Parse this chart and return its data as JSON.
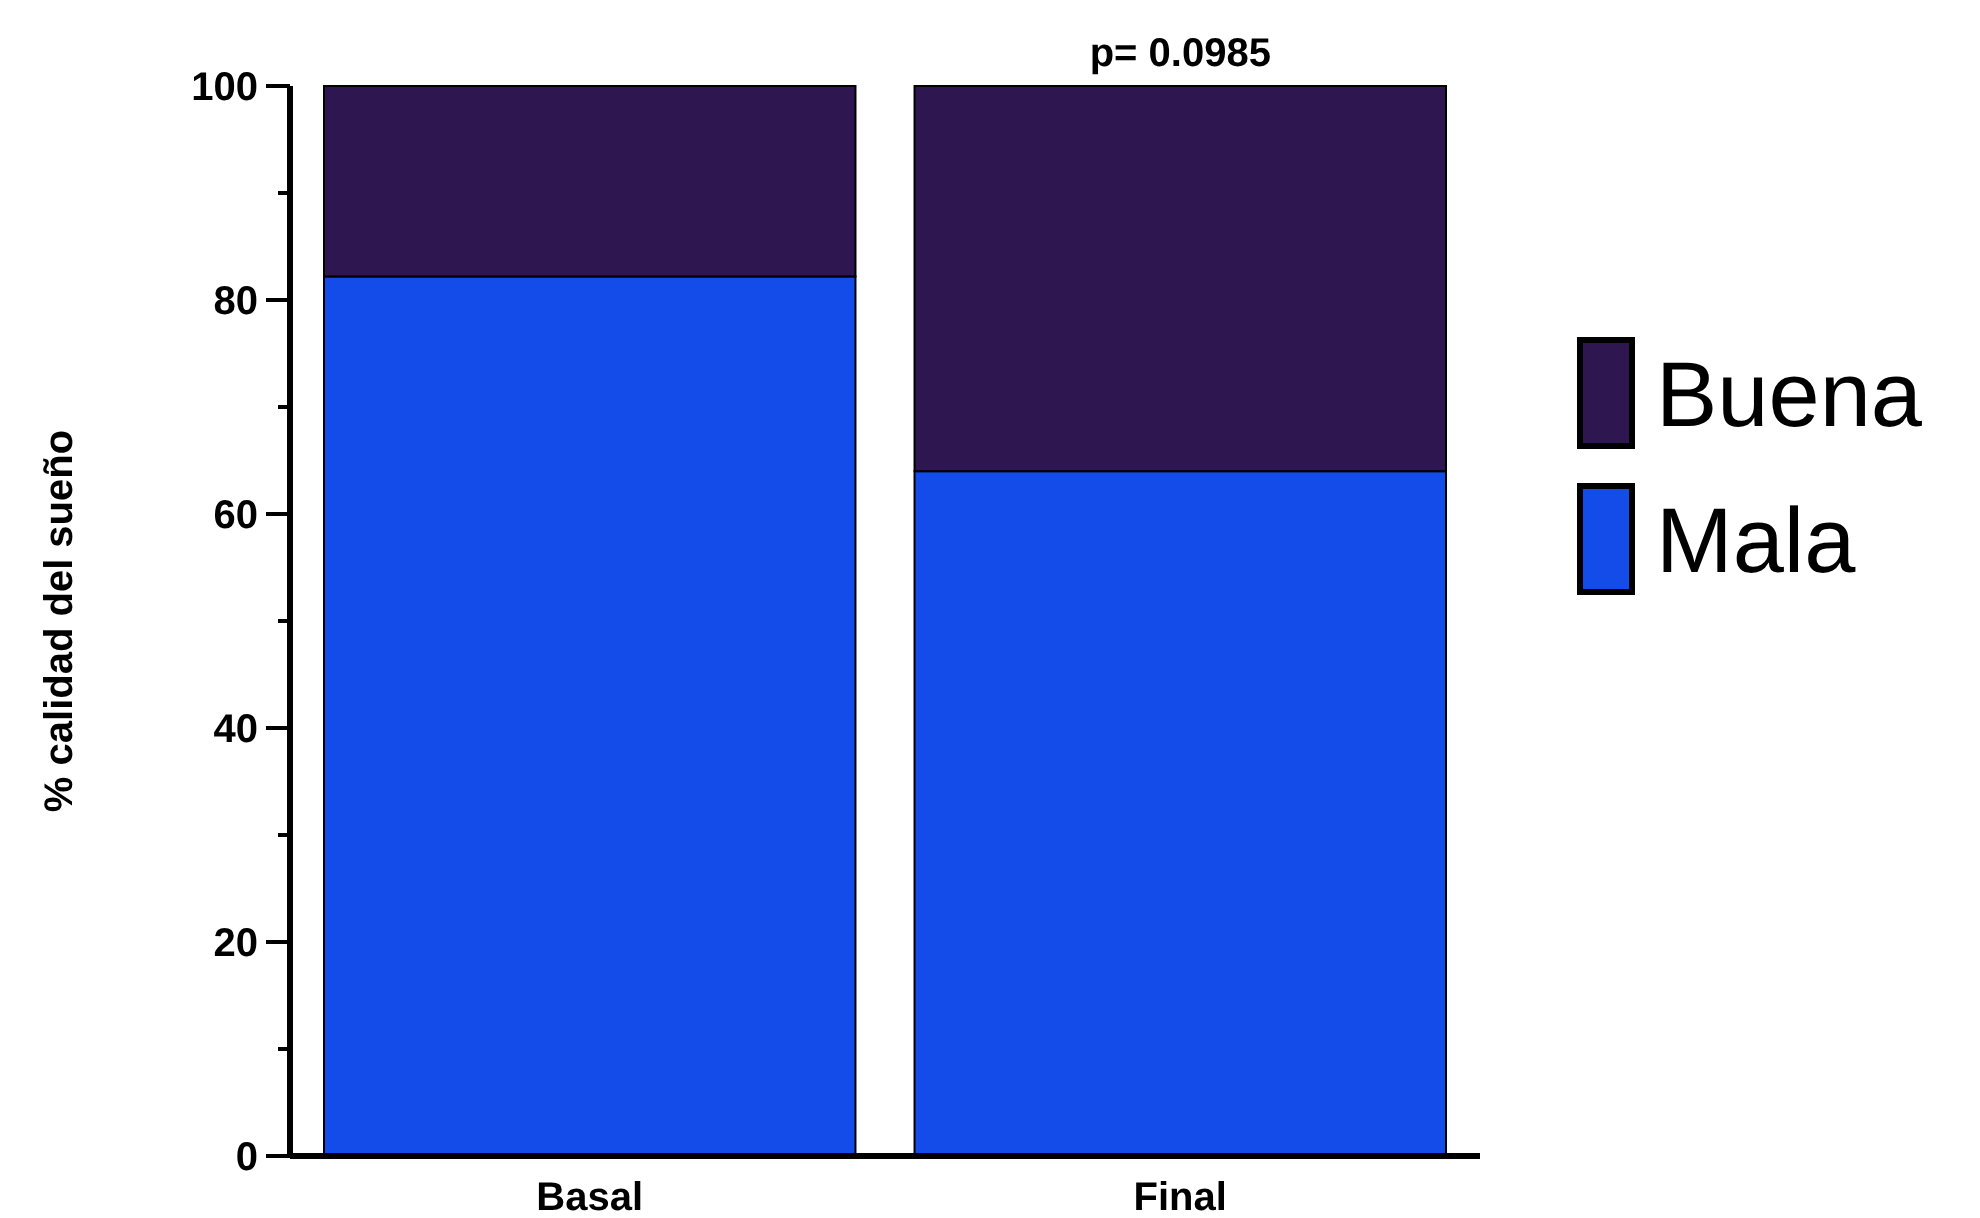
{
  "chart_data": {
    "type": "bar",
    "stacked": true,
    "ylabel": "% calidad del sueño",
    "categories": [
      "Basal",
      "Final"
    ],
    "series": [
      {
        "name": "Mala",
        "color": "#134ce8",
        "values": [
          82.2,
          64
        ]
      },
      {
        "name": "Buena",
        "color": "#2e1650",
        "values": [
          17.8,
          36
        ]
      }
    ],
    "ylim": [
      0,
      100
    ],
    "yticks": [
      0,
      {
        "value": 10,
        "label": null
      },
      20,
      {
        "value": 30,
        "label": null
      },
      40,
      {
        "value": 50,
        "label": null
      },
      60,
      {
        "value": 70,
        "label": null
      },
      80,
      {
        "value": 90,
        "label": null
      },
      100
    ],
    "annotations": [
      {
        "text": "p= 0.0985",
        "x": "Final",
        "y": 100
      }
    ],
    "legend": "right",
    "grid": false
  }
}
